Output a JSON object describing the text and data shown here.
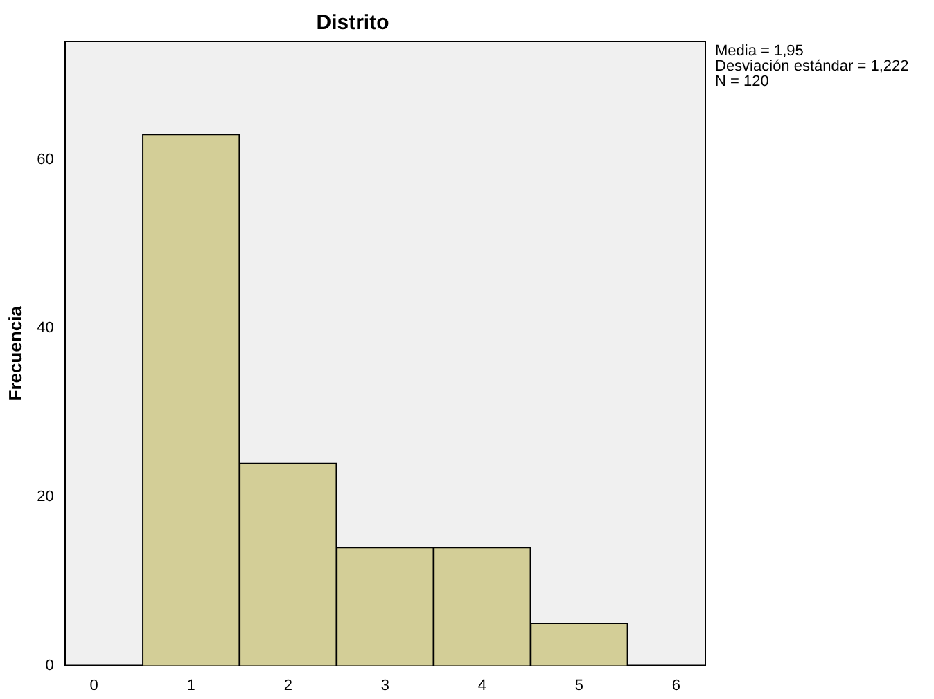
{
  "chart_data": {
    "type": "histogram",
    "title": "Distrito",
    "ylabel": "Frecuencia",
    "bins": [
      0.5,
      1.5,
      2.5,
      3.5,
      4.5,
      5.5
    ],
    "values": [
      63,
      24,
      14,
      14,
      5
    ],
    "color": "#d3ce97",
    "xlim": [
      -0.3,
      6.3
    ],
    "xticks": [
      0,
      1,
      2,
      3,
      4,
      5,
      6
    ],
    "ylim": [
      0,
      74
    ],
    "yticks": [
      0,
      20,
      40,
      60
    ],
    "grid": false,
    "legend": false,
    "annotations": [
      "Media = 1,95",
      "Desviación estándar = 1,222",
      "N = 120"
    ]
  }
}
